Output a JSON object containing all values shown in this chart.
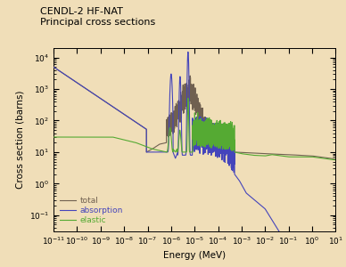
{
  "title_line1": "CENDL-2 HF-NAT",
  "title_line2": "Principal cross sections",
  "xlabel": "Energy (MeV)",
  "ylabel": "Cross section (barns)",
  "background_color": "#f0deb8",
  "xlim_log": [
    -11,
    1
  ],
  "ylim_log": [
    -1.5,
    4.3
  ],
  "legend_labels": [
    "total",
    "absorption",
    "elastic"
  ],
  "color_total": "#706050",
  "color_absorption": "#4444BB",
  "color_elastic": "#55AA33"
}
